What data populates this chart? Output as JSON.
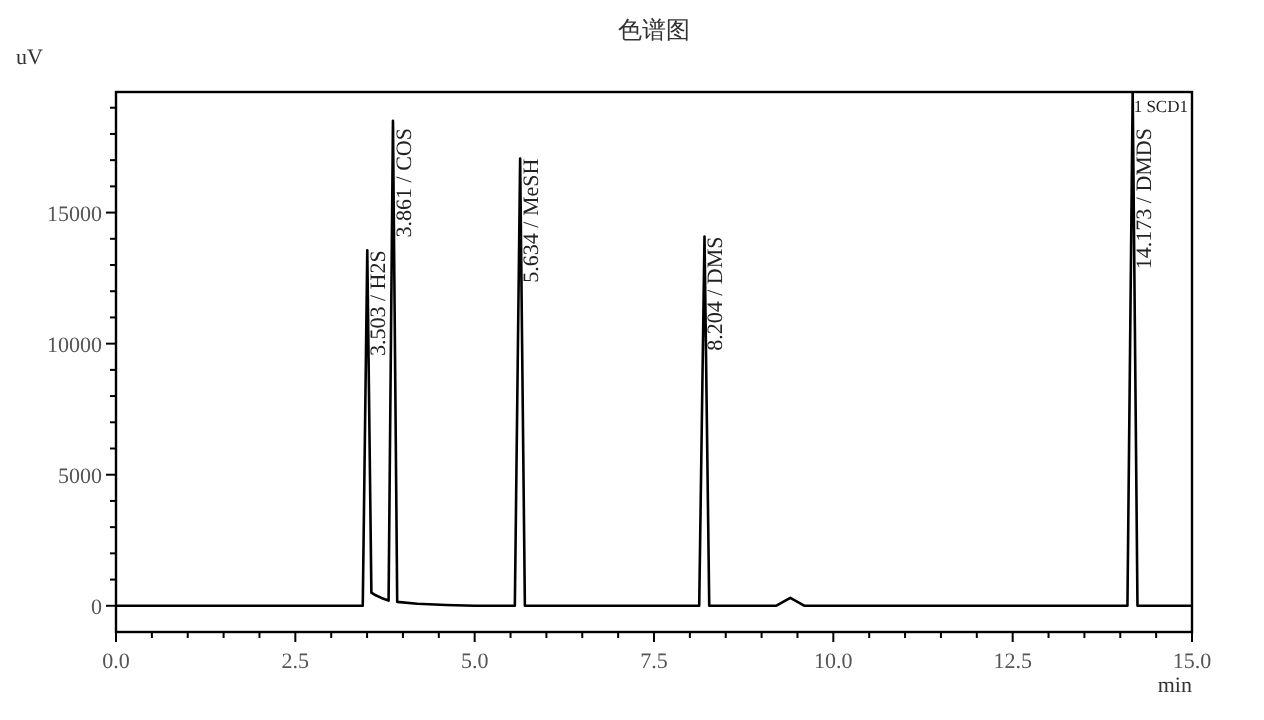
{
  "chart_data": {
    "type": "line",
    "title": "色谱图",
    "xlabel": "min",
    "ylabel": "uV",
    "xlim": [
      0,
      15
    ],
    "ylim": [
      -1000,
      19600
    ],
    "xticks": [
      {
        "value": 0,
        "label": "0.0"
      },
      {
        "value": 0.5,
        "label": null
      },
      {
        "value": 1,
        "label": null
      },
      {
        "value": 1.5,
        "label": null
      },
      {
        "value": 2,
        "label": null
      },
      {
        "value": 2.5,
        "label": "2.5"
      },
      {
        "value": 3,
        "label": null
      },
      {
        "value": 3.5,
        "label": null
      },
      {
        "value": 4,
        "label": null
      },
      {
        "value": 4.5,
        "label": null
      },
      {
        "value": 5,
        "label": "5.0"
      },
      {
        "value": 5.5,
        "label": null
      },
      {
        "value": 6,
        "label": null
      },
      {
        "value": 6.5,
        "label": null
      },
      {
        "value": 7,
        "label": null
      },
      {
        "value": 7.5,
        "label": "7.5"
      },
      {
        "value": 8,
        "label": null
      },
      {
        "value": 8.5,
        "label": null
      },
      {
        "value": 9,
        "label": null
      },
      {
        "value": 9.5,
        "label": null
      },
      {
        "value": 10,
        "label": "10.0"
      },
      {
        "value": 10.5,
        "label": null
      },
      {
        "value": 11,
        "label": null
      },
      {
        "value": 11.5,
        "label": null
      },
      {
        "value": 12,
        "label": null
      },
      {
        "value": 12.5,
        "label": "12.5"
      },
      {
        "value": 13,
        "label": null
      },
      {
        "value": 13.5,
        "label": null
      },
      {
        "value": 14,
        "label": null
      },
      {
        "value": 14.5,
        "label": null
      },
      {
        "value": 15,
        "label": "15.0"
      }
    ],
    "yticks": [
      0,
      {
        "value": 1000,
        "label": null
      },
      {
        "value": 2000,
        "label": null
      },
      {
        "value": 3000,
        "label": null
      },
      {
        "value": 4000,
        "label": null
      },
      5000,
      {
        "value": 6000,
        "label": null
      },
      {
        "value": 7000,
        "label": null
      },
      {
        "value": 8000,
        "label": null
      },
      {
        "value": 9000,
        "label": null
      },
      10000,
      {
        "value": 11000,
        "label": null
      },
      {
        "value": 12000,
        "label": null
      },
      {
        "value": 13000,
        "label": null
      },
      {
        "value": 14000,
        "label": null
      },
      15000,
      {
        "value": 16000,
        "label": null
      },
      {
        "value": 17000,
        "label": null
      },
      {
        "value": 18000,
        "label": null
      },
      {
        "value": 19000,
        "label": null
      }
    ],
    "grid": false,
    "marker": "none",
    "line_style": "solid",
    "series": [
      {
        "color": "#000000",
        "x": [
          0,
          1,
          2,
          3,
          3.44,
          3.503,
          3.56,
          3.62,
          3.7,
          3.8,
          3.861,
          3.92,
          4.2,
          4.6,
          5.0,
          5.56,
          5.634,
          5.7,
          8.13,
          8.204,
          8.27,
          9.2,
          9.4,
          9.6,
          14.1,
          14.173,
          14.24,
          15
        ],
        "values": [
          0,
          0,
          0,
          0,
          0,
          13560,
          500,
          400,
          300,
          200,
          18500,
          150,
          80,
          30,
          0,
          0,
          17060,
          0,
          0,
          14090,
          0,
          0,
          300,
          0,
          0,
          19600,
          0,
          0
        ]
      }
    ],
    "annotations": [
      {
        "text": "3.503 / H2S",
        "x": 3.503,
        "y": 13560
      },
      {
        "text": "3.861 / COS",
        "x": 3.861,
        "y": 18500
      },
      {
        "text": "5.634 / MeSH",
        "x": 5.634,
        "y": 17060
      },
      {
        "text": "8.204 / DMS",
        "x": 8.204,
        "y": 14090
      },
      {
        "text": "14.173 / DMDS",
        "x": 14.173,
        "y": 19600
      },
      "1 SCD1"
    ]
  }
}
